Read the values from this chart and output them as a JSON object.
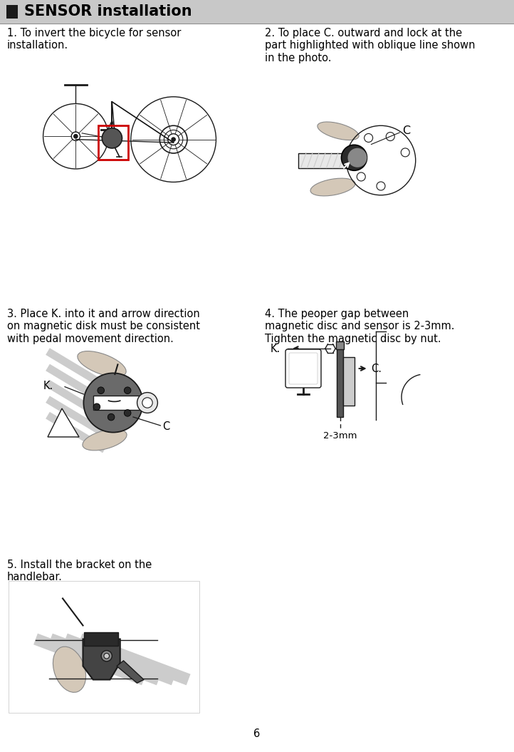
{
  "title": "SENSOR installation",
  "title_square_color": "#1a1a1a",
  "title_bg_color": "#c8c8c8",
  "title_fontsize": 15,
  "body_fontsize": 10.5,
  "small_fontsize": 9.5,
  "background_color": "#ffffff",
  "page_number": "6",
  "section1_text": "1. To invert the bicycle for sensor\ninstallation.",
  "section2_text": "2. To place C. outward and lock at the\npart highlighted with oblique line shown\nin the photo.",
  "section3_text": "3. Place K. into it and arrow direction\non magnetic disk must be consistent\nwith pedal movement direction.",
  "section4_text": "4. The peoper gap between\nmagnetic disc and sensor is 2-3mm.\nTighten the magnetic disc by nut.",
  "section5_text": "5. Install the bracket on the\nhandlebar.",
  "label_C1": "C",
  "label_C2": "C.",
  "label_K1": "K.",
  "label_K2": "K.",
  "label_gap": "2-3mm",
  "lc": "#1a1a1a",
  "gray_dark": "#555555",
  "gray_mid": "#888888",
  "gray_light": "#cccccc",
  "gray_vlight": "#e8e8e8",
  "skin": "#d4c8b8",
  "red": "#cc0000"
}
